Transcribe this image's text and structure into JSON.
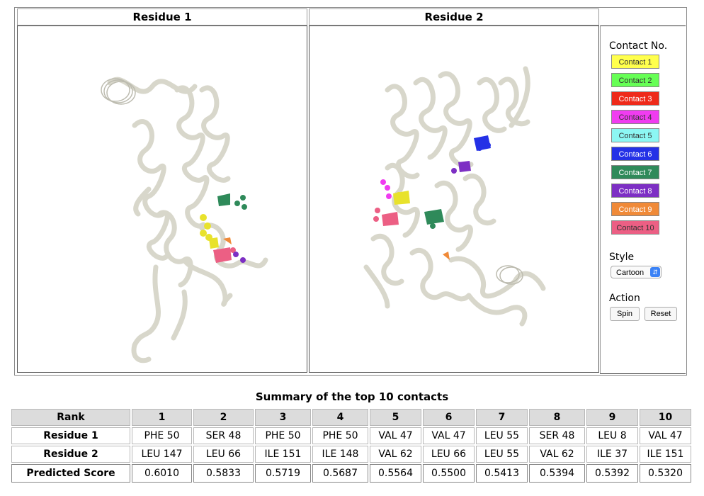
{
  "panels": {
    "residue1_title": "Residue 1",
    "residue2_title": "Residue 2"
  },
  "controls": {
    "contact_heading": "Contact No.",
    "contacts": [
      {
        "label": "Contact 1",
        "color": "#ffff4d",
        "text_color": "#333333"
      },
      {
        "label": "Contact 2",
        "color": "#66ff55",
        "text_color": "#333333"
      },
      {
        "label": "Contact 3",
        "color": "#ee2a1a",
        "text_color": "#ffffff"
      },
      {
        "label": "Contact 4",
        "color": "#f03cf0",
        "text_color": "#333333"
      },
      {
        "label": "Contact 5",
        "color": "#8cf7f3",
        "text_color": "#333333"
      },
      {
        "label": "Contact 6",
        "color": "#2431e6",
        "text_color": "#ffffff"
      },
      {
        "label": "Contact 7",
        "color": "#2f8a5a",
        "text_color": "#ffffff"
      },
      {
        "label": "Contact 8",
        "color": "#7d2fc4",
        "text_color": "#ffffff"
      },
      {
        "label": "Contact 9",
        "color": "#f08a38",
        "text_color": "#ffffff"
      },
      {
        "label": "Contact 10",
        "color": "#ec5f84",
        "text_color": "#333333"
      }
    ],
    "style_heading": "Style",
    "style_value": "Cartoon",
    "action_heading": "Action",
    "spin_label": "Spin",
    "reset_label": "Reset"
  },
  "summary": {
    "title": "Summary of the top 10 contacts",
    "rank_label": "Rank",
    "ranks": [
      "1",
      "2",
      "3",
      "4",
      "5",
      "6",
      "7",
      "8",
      "9",
      "10"
    ],
    "rows": [
      {
        "label": "Residue 1",
        "values": [
          "PHE 50",
          "SER 48",
          "PHE 50",
          "PHE 50",
          "VAL 47",
          "VAL 47",
          "LEU 55",
          "SER 48",
          "LEU 8",
          "VAL 47"
        ]
      },
      {
        "label": "Residue 2",
        "values": [
          "LEU 147",
          "LEU 66",
          "ILE 151",
          "ILE 148",
          "VAL 62",
          "LEU 66",
          "LEU 55",
          "VAL 62",
          "ILE 37",
          "ILE 151"
        ]
      },
      {
        "label": "Predicted Score",
        "values": [
          "0.6010",
          "0.5833",
          "0.5719",
          "0.5687",
          "0.5564",
          "0.5500",
          "0.5413",
          "0.5394",
          "0.5392",
          "0.5320"
        ]
      }
    ]
  }
}
